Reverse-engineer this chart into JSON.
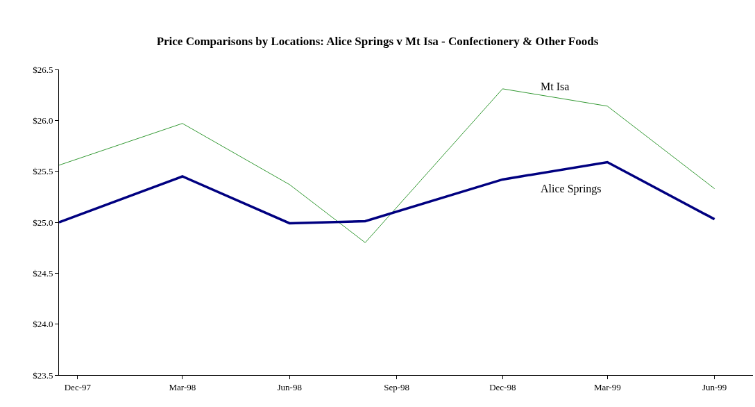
{
  "chart_data": {
    "type": "line",
    "title": "Price Comparisons by Locations: Alice Springs v Mt Isa - Confectionery & Other Foods",
    "x": [
      "1997-11-15",
      "1998-03-01",
      "1998-06-01",
      "1998-08-05",
      "1998-12-01",
      "1999-03-01",
      "1999-06-01"
    ],
    "series": [
      {
        "name": "Mt Isa",
        "color": "#339933",
        "values": [
          25.56,
          25.97,
          25.37,
          24.8,
          26.31,
          26.14,
          25.33
        ]
      },
      {
        "name": "Alice Springs",
        "color": "#000080",
        "values": [
          25.0,
          25.45,
          24.99,
          25.01,
          25.42,
          25.59,
          25.03
        ]
      }
    ],
    "xlim": [
      "1997-11-15",
      "1999-07-04"
    ],
    "xticks": [
      {
        "value": "1997-12-01",
        "label": "Dec-97"
      },
      {
        "value": "1998-03-01",
        "label": "Mar-98"
      },
      {
        "value": "1998-06-01",
        "label": "Jun-98"
      },
      {
        "value": "1998-09-01",
        "label": "Sep-98"
      },
      {
        "value": "1998-12-01",
        "label": "Dec-98"
      },
      {
        "value": "1999-03-01",
        "label": "Mar-99"
      },
      {
        "value": "1999-06-01",
        "label": "Jun-99"
      }
    ],
    "ylim": [
      23.5,
      26.5
    ],
    "yticks": [
      {
        "value": 23.5,
        "label": "$23.5"
      },
      {
        "value": 24.0,
        "label": "$24.0"
      },
      {
        "value": 24.5,
        "label": "$24.5"
      },
      {
        "value": 25.0,
        "label": "$25.0"
      },
      {
        "value": 25.5,
        "label": "$25.5"
      },
      {
        "value": 26.0,
        "label": "$26.0"
      },
      {
        "value": 26.5,
        "label": "$26.5"
      }
    ],
    "grid": false,
    "legend": false,
    "marker": "none",
    "line_style": "solid"
  }
}
